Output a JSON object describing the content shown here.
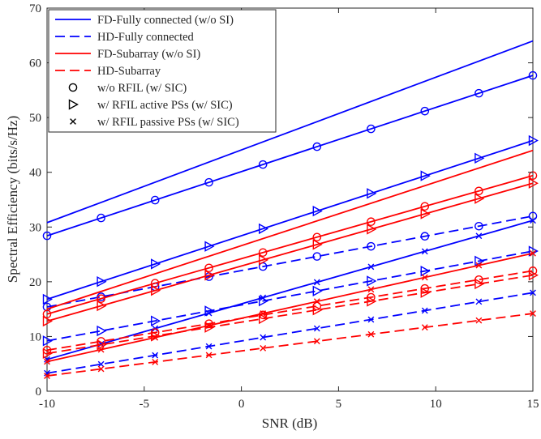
{
  "chart_data": {
    "type": "line",
    "xlabel": "SNR (dB)",
    "ylabel": "Spectral Efficiency (bits/s/Hz)",
    "xlim": [
      -10,
      15
    ],
    "ylim": [
      0,
      70
    ],
    "xticks": [
      -10,
      -5,
      0,
      5,
      10,
      15
    ],
    "yticks": [
      0,
      10,
      20,
      30,
      40,
      50,
      60,
      70
    ],
    "grid": false,
    "legend_position": "top-left",
    "marker_x": [
      -10,
      -7.22,
      -4.44,
      -1.67,
      1.11,
      3.89,
      6.67,
      9.44,
      12.22,
      15
    ],
    "legend": [
      {
        "label": "FD-Fully connected (w/o SI)",
        "color": "#0000ff",
        "dash": "solid",
        "marker": "none"
      },
      {
        "label": "HD-Fully connected",
        "color": "#0000ff",
        "dash": "dashed",
        "marker": "none"
      },
      {
        "label": "FD-Subarray (w/o SI)",
        "color": "#ff0000",
        "dash": "solid",
        "marker": "none"
      },
      {
        "label": "HD-Subarray",
        "color": "#ff0000",
        "dash": "dashed",
        "marker": "none"
      },
      {
        "label": "w/o RFIL (w/ SIC)",
        "color": "#000000",
        "dash": "none",
        "marker": "circle"
      },
      {
        "label": "w/ RFIL active PSs (w/ SIC)",
        "color": "#000000",
        "dash": "none",
        "marker": "triangle-right"
      },
      {
        "label": "w/ RFIL passive PSs (w/ SIC)",
        "color": "#000000",
        "dash": "none",
        "marker": "x"
      }
    ],
    "series": [
      {
        "group": "fully-connected",
        "duplex": "FD",
        "variant": "w/o SI",
        "color": "#0000ff",
        "dash": "solid",
        "marker": "none",
        "x": [
          -10,
          15
        ],
        "y": [
          30.8,
          64.0
        ]
      },
      {
        "group": "fully-connected",
        "duplex": "FD",
        "variant": "w/o RFIL (w/ SIC)",
        "color": "#0000ff",
        "dash": "solid",
        "marker": "circle",
        "x": [
          -10,
          15
        ],
        "y": [
          28.4,
          57.7
        ]
      },
      {
        "group": "fully-connected",
        "duplex": "FD",
        "variant": "w/ RFIL active PSs (w/ SIC)",
        "color": "#0000ff",
        "dash": "solid",
        "marker": "triangle-right",
        "x": [
          -10,
          15
        ],
        "y": [
          16.8,
          45.8
        ]
      },
      {
        "group": "fully-connected",
        "duplex": "FD",
        "variant": "w/ RFIL passive PSs (w/ SIC)",
        "color": "#0000ff",
        "dash": "solid",
        "marker": "x",
        "x": [
          -10,
          15
        ],
        "y": [
          5.8,
          31.2
        ]
      },
      {
        "group": "fully-connected",
        "duplex": "HD",
        "variant": "w/o RFIL (w/ SIC)",
        "color": "#0000ff",
        "dash": "dashed",
        "marker": "circle",
        "x": [
          -10,
          15
        ],
        "y": [
          15.4,
          32.0
        ]
      },
      {
        "group": "fully-connected",
        "duplex": "HD",
        "variant": "w/ RFIL active PSs (w/ SIC)",
        "color": "#0000ff",
        "dash": "dashed",
        "marker": "triangle-right",
        "x": [
          -10,
          15
        ],
        "y": [
          9.2,
          25.6
        ]
      },
      {
        "group": "fully-connected",
        "duplex": "HD",
        "variant": "w/ RFIL passive PSs (w/ SIC)",
        "color": "#0000ff",
        "dash": "dashed",
        "marker": "x",
        "x": [
          -10,
          15
        ],
        "y": [
          3.3,
          18.0
        ]
      },
      {
        "group": "subarray",
        "duplex": "FD",
        "variant": "w/o SI",
        "color": "#ff0000",
        "dash": "solid",
        "marker": "none",
        "x": [
          -10,
          15
        ],
        "y": [
          15.0,
          44.0
        ]
      },
      {
        "group": "subarray",
        "duplex": "FD",
        "variant": "w/o RFIL (w/ SIC)",
        "color": "#ff0000",
        "dash": "solid",
        "marker": "circle",
        "x": [
          -10,
          15
        ],
        "y": [
          14.1,
          39.4
        ]
      },
      {
        "group": "subarray",
        "duplex": "FD",
        "variant": "w/ RFIL active PSs (w/ SIC)",
        "color": "#ff0000",
        "dash": "solid",
        "marker": "triangle-right",
        "x": [
          -10,
          15
        ],
        "y": [
          12.8,
          38.0
        ]
      },
      {
        "group": "subarray",
        "duplex": "FD",
        "variant": "w/ RFIL passive PSs (w/ SIC)",
        "color": "#ff0000",
        "dash": "solid",
        "marker": "x",
        "x": [
          -10,
          15
        ],
        "y": [
          5.4,
          25.2
        ]
      },
      {
        "group": "subarray",
        "duplex": "HD",
        "variant": "w/o RFIL (w/ SIC)",
        "color": "#ff0000",
        "dash": "dashed",
        "marker": "circle",
        "x": [
          -10,
          15
        ],
        "y": [
          7.5,
          22.0
        ]
      },
      {
        "group": "subarray",
        "duplex": "HD",
        "variant": "w/ RFIL active PSs (w/ SIC)",
        "color": "#ff0000",
        "dash": "dashed",
        "marker": "triangle-right",
        "x": [
          -10,
          15
        ],
        "y": [
          6.9,
          21.2
        ]
      },
      {
        "group": "subarray",
        "duplex": "HD",
        "variant": "w/ RFIL passive PSs (w/ SIC)",
        "color": "#ff0000",
        "dash": "dashed",
        "marker": "x",
        "x": [
          -10,
          15
        ],
        "y": [
          2.8,
          14.2
        ]
      }
    ]
  }
}
